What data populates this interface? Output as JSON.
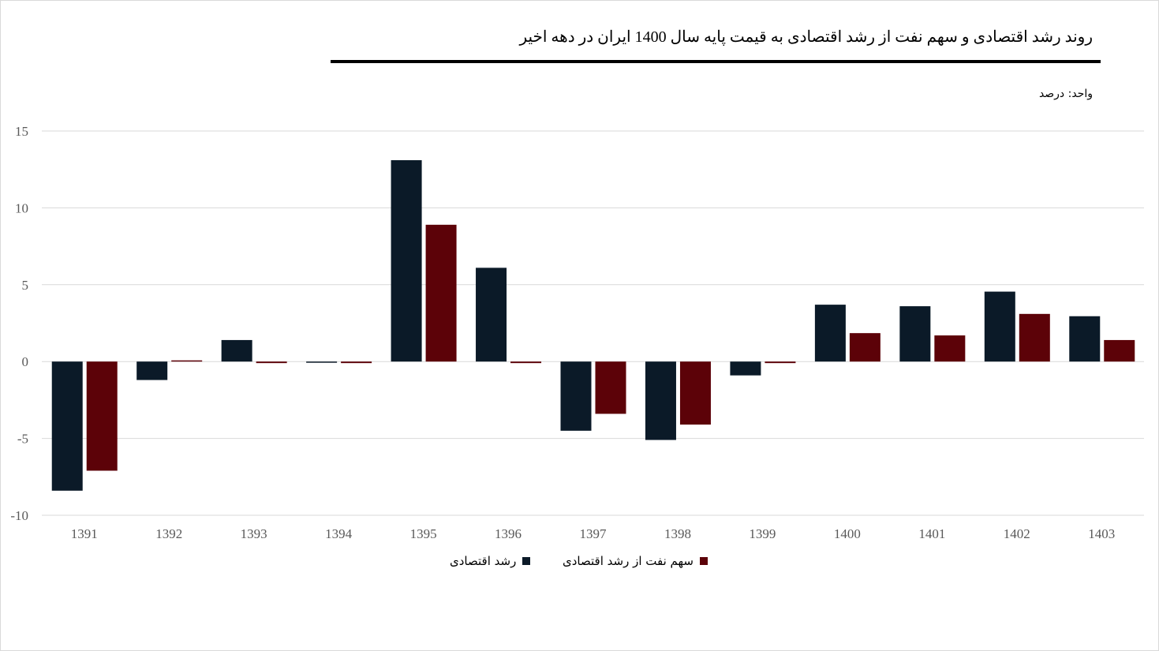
{
  "header": {
    "title": "روند رشد اقتصادی و سهم نفت از رشد اقتصادی به قیمت پایه  سال 1400 ایران در دهه اخیر",
    "unit": "واحد: درصد"
  },
  "colors": {
    "series1": "#0b1a28",
    "series2": "#5c0208",
    "grid": "#d9d9d9",
    "tick": "#595959"
  },
  "chart_data": {
    "type": "bar",
    "categories": [
      "1391",
      "1392",
      "1393",
      "1394",
      "1395",
      "1396",
      "1397",
      "1398",
      "1399",
      "1400",
      "1401",
      "1402",
      "1403"
    ],
    "series": [
      {
        "name": "رشد اقتصادی",
        "values": [
          -8.4,
          -1.2,
          1.4,
          -0.05,
          13.1,
          6.1,
          -4.5,
          -5.1,
          -0.9,
          3.7,
          3.6,
          4.55,
          2.95
        ]
      },
      {
        "name": "سهم نفت از رشد اقتصادی",
        "values": [
          -7.1,
          0.05,
          -0.1,
          -0.1,
          8.9,
          -0.1,
          -3.4,
          -4.1,
          -0.1,
          1.85,
          1.7,
          3.1,
          1.4
        ]
      }
    ],
    "ylim": [
      -10,
      15
    ],
    "yticks": [
      "15",
      "10",
      "5",
      "0",
      "-5",
      "-10"
    ],
    "ytick_values": [
      15,
      10,
      5,
      0,
      -5,
      -10
    ],
    "grid": true,
    "legend": "bottom-center"
  }
}
